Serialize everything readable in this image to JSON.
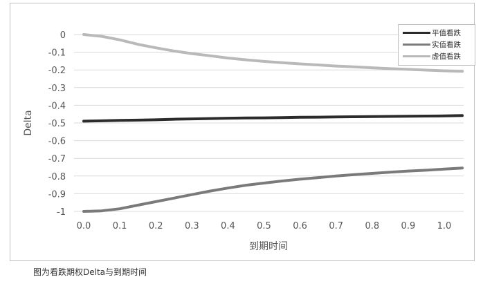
{
  "figure": {
    "caption": "图为看跌期权Delta与到期时间"
  },
  "chart_data": {
    "type": "line",
    "title": "",
    "xlabel": "到期时间",
    "ylabel": "Delta",
    "xlim": [
      0.0,
      1.05
    ],
    "ylim": [
      -1,
      0
    ],
    "grid": "horizontal",
    "legend_position": "top-right",
    "x_ticks": [
      "0.0",
      "0.1",
      "0.2",
      "0.3",
      "0.4",
      "0.5",
      "0.6",
      "0.7",
      "0.8",
      "0.9",
      "1.0"
    ],
    "y_ticks": [
      "0",
      "-0.1",
      "-0.2",
      "-0.3",
      "-0.4",
      "-0.5",
      "-0.6",
      "-0.7",
      "-0.8",
      "-0.9",
      "-1"
    ],
    "x": [
      0.0,
      0.05,
      0.1,
      0.15,
      0.2,
      0.25,
      0.3,
      0.35,
      0.4,
      0.45,
      0.5,
      0.55,
      0.6,
      0.65,
      0.7,
      0.75,
      0.8,
      0.85,
      0.9,
      0.95,
      1.0,
      1.05
    ],
    "series": [
      {
        "name": "平值看跌",
        "color": "#2b2b2b",
        "values": [
          -0.49,
          -0.488,
          -0.485,
          -0.484,
          -0.482,
          -0.479,
          -0.477,
          -0.475,
          -0.473,
          -0.472,
          -0.471,
          -0.47,
          -0.468,
          -0.467,
          -0.466,
          -0.465,
          -0.464,
          -0.463,
          -0.462,
          -0.461,
          -0.46,
          -0.458
        ]
      },
      {
        "name": "实值看跌",
        "color": "#7a7a7a",
        "values": [
          -1.0,
          -0.997,
          -0.985,
          -0.965,
          -0.945,
          -0.925,
          -0.905,
          -0.885,
          -0.868,
          -0.852,
          -0.84,
          -0.828,
          -0.818,
          -0.809,
          -0.8,
          -0.792,
          -0.785,
          -0.778,
          -0.772,
          -0.767,
          -0.761,
          -0.755
        ]
      },
      {
        "name": "虚值看跌",
        "color": "#b9b9b9",
        "values": [
          0.0,
          -0.01,
          -0.03,
          -0.055,
          -0.075,
          -0.093,
          -0.108,
          -0.12,
          -0.133,
          -0.143,
          -0.152,
          -0.159,
          -0.166,
          -0.172,
          -0.178,
          -0.183,
          -0.188,
          -0.193,
          -0.197,
          -0.201,
          -0.205,
          -0.208
        ]
      }
    ]
  }
}
